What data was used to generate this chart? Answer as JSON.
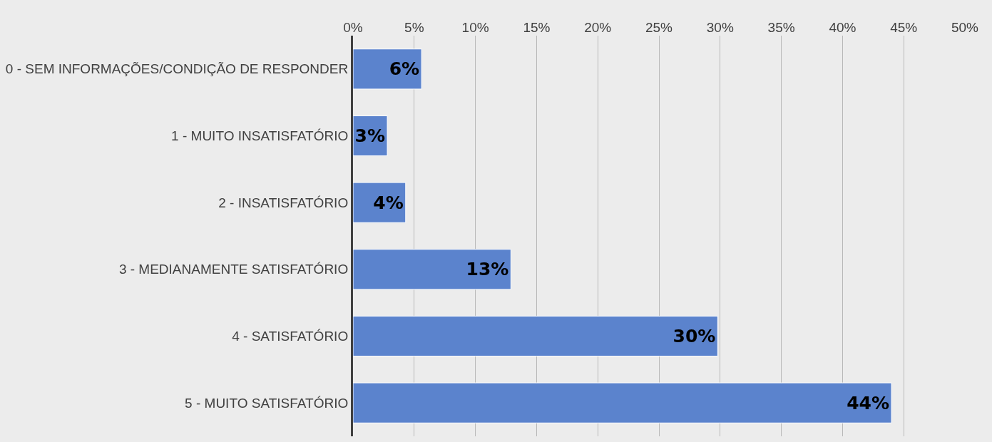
{
  "chart_data": {
    "type": "bar",
    "orientation": "horizontal",
    "categories": [
      "0 - SEM INFORMAÇÕES/CONDIÇÃO DE RESPONDER",
      "1 - MUITO INSATISFATÓRIO",
      "2 - INSATISFATÓRIO",
      "3 - MEDIANAMENTE SATISFATÓRIO",
      "4 - SATISFATÓRIO",
      "5 - MUITO SATISFATÓRIO"
    ],
    "values": [
      5.6,
      2.8,
      4.3,
      12.9,
      29.8,
      44.0
    ],
    "value_labels": [
      "6%",
      "3%",
      "4%",
      "13%",
      "30%",
      "44%"
    ],
    "color": "#5b83cd",
    "xlim": [
      0,
      50
    ],
    "xticks": [
      {
        "value": 0,
        "label": "0%"
      },
      {
        "value": 5,
        "label": "5%"
      },
      {
        "value": 10,
        "label": "10%"
      },
      {
        "value": 15,
        "label": "15%"
      },
      {
        "value": 20,
        "label": "20%"
      },
      {
        "value": 25,
        "label": "25%"
      },
      {
        "value": 30,
        "label": "30%"
      },
      {
        "value": 35,
        "label": "35%"
      },
      {
        "value": 40,
        "label": "40%"
      },
      {
        "value": 45,
        "label": "45%"
      },
      {
        "value": 50,
        "label": "50%"
      }
    ],
    "grid": "x",
    "legend": false
  }
}
